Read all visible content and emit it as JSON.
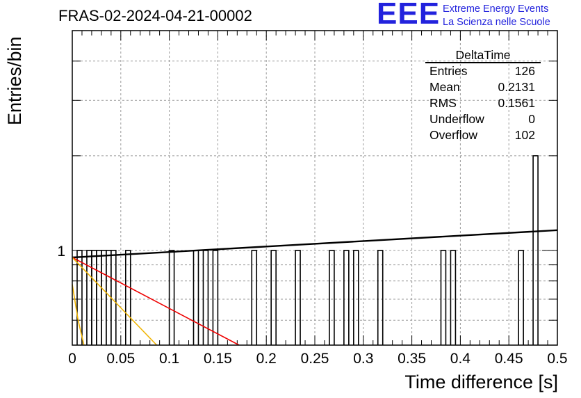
{
  "title": "FRAS-02-2024-04-21-00002",
  "logo": {
    "mark": "EEE",
    "line1": "Extreme Energy Events",
    "line2": "La Scienza nelle Scuole"
  },
  "stats_box": {
    "title": "DeltaTime",
    "rows": [
      {
        "key": "Entries",
        "value": "126"
      },
      {
        "key": "Mean",
        "value": "0.2131"
      },
      {
        "key": "RMS",
        "value": "0.1561"
      },
      {
        "key": "Underflow",
        "value": "0"
      },
      {
        "key": "Overflow",
        "value": "102"
      }
    ]
  },
  "chart_data": {
    "type": "bar",
    "title": "FRAS-02-2024-04-21-00002",
    "xlabel": "Time difference [s]",
    "ylabel": "Entries/bin",
    "xlim": [
      0,
      0.5
    ],
    "ylim": [
      0.5,
      5
    ],
    "y_scale": "log",
    "grid": true,
    "x_ticks": [
      0,
      0.05,
      0.1,
      0.15,
      0.2,
      0.25,
      0.3,
      0.35,
      0.4,
      0.45,
      0.5
    ],
    "x_tick_labels": [
      "0",
      "0.05",
      "0.1",
      "0.15",
      "0.2",
      "0.25",
      "0.3",
      "0.35",
      "0.4",
      "0.45",
      "0.5"
    ],
    "y_ticks": [
      1
    ],
    "y_tick_labels": [
      "1"
    ],
    "bin_width": 0.005,
    "bins": [
      {
        "x": 0.005,
        "y": 1
      },
      {
        "x": 0.015,
        "y": 1
      },
      {
        "x": 0.02,
        "y": 1
      },
      {
        "x": 0.025,
        "y": 1
      },
      {
        "x": 0.03,
        "y": 1
      },
      {
        "x": 0.035,
        "y": 1
      },
      {
        "x": 0.04,
        "y": 1
      },
      {
        "x": 0.055,
        "y": 1
      },
      {
        "x": 0.1,
        "y": 1
      },
      {
        "x": 0.125,
        "y": 1
      },
      {
        "x": 0.135,
        "y": 1
      },
      {
        "x": 0.145,
        "y": 1
      },
      {
        "x": 0.185,
        "y": 1
      },
      {
        "x": 0.205,
        "y": 1
      },
      {
        "x": 0.23,
        "y": 1
      },
      {
        "x": 0.265,
        "y": 1
      },
      {
        "x": 0.28,
        "y": 1
      },
      {
        "x": 0.29,
        "y": 1
      },
      {
        "x": 0.315,
        "y": 1
      },
      {
        "x": 0.38,
        "y": 1
      },
      {
        "x": 0.39,
        "y": 1
      },
      {
        "x": 0.46,
        "y": 1
      },
      {
        "x": 0.475,
        "y": 2
      }
    ],
    "fits": [
      {
        "color": "#000000",
        "points": [
          [
            0,
            0.95
          ],
          [
            0.5,
            1.16
          ]
        ]
      },
      {
        "color": "#ee0000",
        "points": [
          [
            0,
            0.95
          ],
          [
            0.172,
            0.5
          ]
        ]
      },
      {
        "color": "#f0b400",
        "points": [
          [
            0,
            0.95
          ],
          [
            0.087,
            0.5
          ]
        ]
      },
      {
        "color": "#f0b400",
        "points": [
          [
            0,
            0.78
          ],
          [
            0.006,
            0.6
          ],
          [
            0.012,
            0.5
          ]
        ]
      }
    ]
  }
}
